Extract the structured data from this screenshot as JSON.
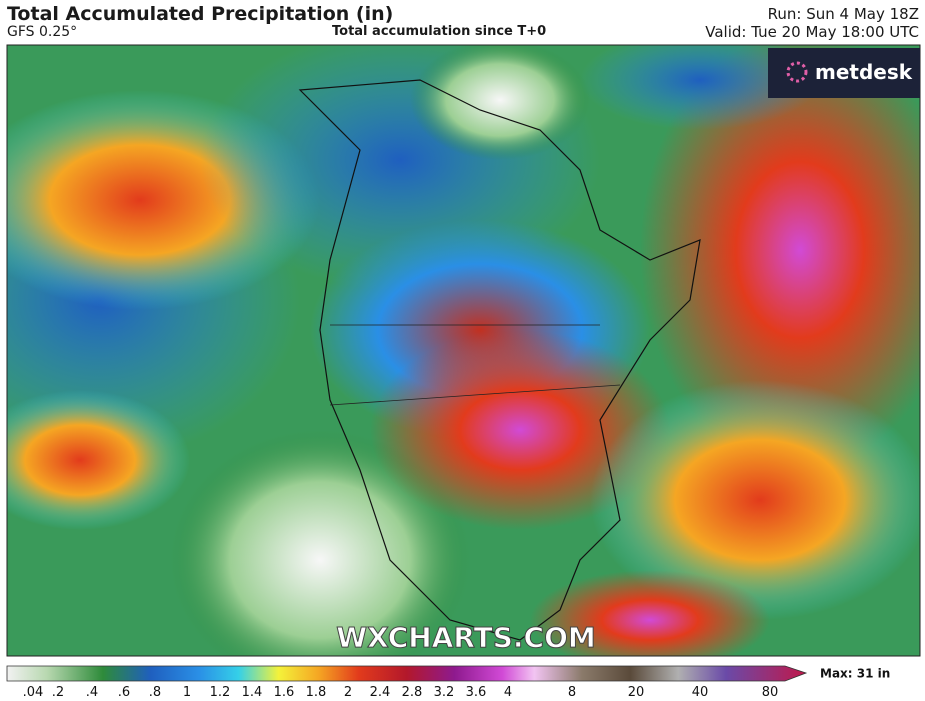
{
  "header": {
    "title": "Total Accumulated Precipitation (in)",
    "model": "GFS 0.25°",
    "subtitle": "Total accumulation since T+0",
    "run": "Run: Sun 4 May 18Z",
    "valid": "Valid: Tue 20 May 18:00 UTC"
  },
  "map": {
    "logo": "metdesk",
    "watermark": "WXCHARTS.COM"
  },
  "legend": {
    "max_label": "Max: 31 in",
    "ticks": [
      ".04",
      ".2",
      ".4",
      ".6",
      ".8",
      "1",
      "1.2",
      "1.4",
      "1.6",
      "1.8",
      "2",
      "2.4",
      "2.8",
      "3.2",
      "3.6",
      "4",
      "8",
      "20",
      "40",
      "80"
    ]
  }
}
